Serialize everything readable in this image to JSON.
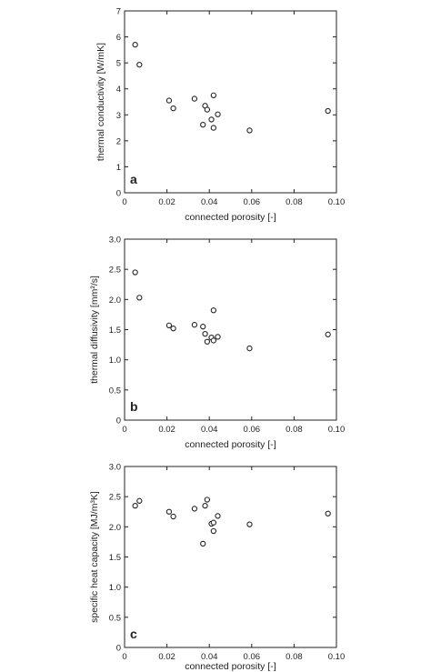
{
  "chart_data": [
    {
      "type": "scatter",
      "panel_letter": "a",
      "xlabel": "connected porosity [-]",
      "ylabel": "thermal conductivity [W/mK]",
      "xlim": [
        0,
        0.1
      ],
      "ylim": [
        0,
        7
      ],
      "x_ticks": [
        "0",
        "0.02",
        "0.04",
        "0.06",
        "0.08",
        "0.10"
      ],
      "y_ticks": [
        "0",
        "1",
        "2",
        "3",
        "4",
        "5",
        "6",
        "7"
      ],
      "points": [
        {
          "x": 0.005,
          "y": 5.7
        },
        {
          "x": 0.007,
          "y": 4.93
        },
        {
          "x": 0.021,
          "y": 3.55
        },
        {
          "x": 0.023,
          "y": 3.25
        },
        {
          "x": 0.033,
          "y": 3.62
        },
        {
          "x": 0.037,
          "y": 2.62
        },
        {
          "x": 0.038,
          "y": 3.35
        },
        {
          "x": 0.039,
          "y": 3.2
        },
        {
          "x": 0.041,
          "y": 2.82
        },
        {
          "x": 0.042,
          "y": 3.75
        },
        {
          "x": 0.042,
          "y": 2.5
        },
        {
          "x": 0.044,
          "y": 3.02
        },
        {
          "x": 0.059,
          "y": 2.4
        },
        {
          "x": 0.096,
          "y": 3.15
        }
      ]
    },
    {
      "type": "scatter",
      "panel_letter": "b",
      "xlabel": "connected porosity [-]",
      "ylabel": "thermal diffusivity [mm²/s]",
      "xlim": [
        0,
        0.1
      ],
      "ylim": [
        0,
        3
      ],
      "x_ticks": [
        "0",
        "0.02",
        "0.04",
        "0.06",
        "0.08",
        "0.10"
      ],
      "y_ticks": [
        "0",
        "0.5",
        "1.0",
        "1.5",
        "2.0",
        "2.5",
        "3.0"
      ],
      "points": [
        {
          "x": 0.005,
          "y": 2.45
        },
        {
          "x": 0.007,
          "y": 2.03
        },
        {
          "x": 0.021,
          "y": 1.57
        },
        {
          "x": 0.023,
          "y": 1.52
        },
        {
          "x": 0.033,
          "y": 1.58
        },
        {
          "x": 0.037,
          "y": 1.55
        },
        {
          "x": 0.038,
          "y": 1.43
        },
        {
          "x": 0.039,
          "y": 1.3
        },
        {
          "x": 0.041,
          "y": 1.37
        },
        {
          "x": 0.042,
          "y": 1.82
        },
        {
          "x": 0.042,
          "y": 1.32
        },
        {
          "x": 0.044,
          "y": 1.38
        },
        {
          "x": 0.059,
          "y": 1.19
        },
        {
          "x": 0.096,
          "y": 1.42
        }
      ]
    },
    {
      "type": "scatter",
      "panel_letter": "c",
      "xlabel": "connected porosity [-]",
      "ylabel": "specific heat capacity [MJ/m³K]",
      "xlim": [
        0,
        0.1
      ],
      "ylim": [
        0,
        3
      ],
      "x_ticks": [
        "0",
        "0.02",
        "0.04",
        "0.06",
        "0.08",
        "0.10"
      ],
      "y_ticks": [
        "0",
        "0.5",
        "1.0",
        "1.5",
        "2.0",
        "2.5",
        "3.0"
      ],
      "points": [
        {
          "x": 0.005,
          "y": 2.35
        },
        {
          "x": 0.007,
          "y": 2.43
        },
        {
          "x": 0.021,
          "y": 2.25
        },
        {
          "x": 0.023,
          "y": 2.17
        },
        {
          "x": 0.033,
          "y": 2.3
        },
        {
          "x": 0.037,
          "y": 1.72
        },
        {
          "x": 0.038,
          "y": 2.35
        },
        {
          "x": 0.039,
          "y": 2.45
        },
        {
          "x": 0.041,
          "y": 2.05
        },
        {
          "x": 0.042,
          "y": 2.07
        },
        {
          "x": 0.042,
          "y": 1.93
        },
        {
          "x": 0.044,
          "y": 2.18
        },
        {
          "x": 0.059,
          "y": 2.04
        },
        {
          "x": 0.096,
          "y": 2.22
        }
      ]
    }
  ]
}
